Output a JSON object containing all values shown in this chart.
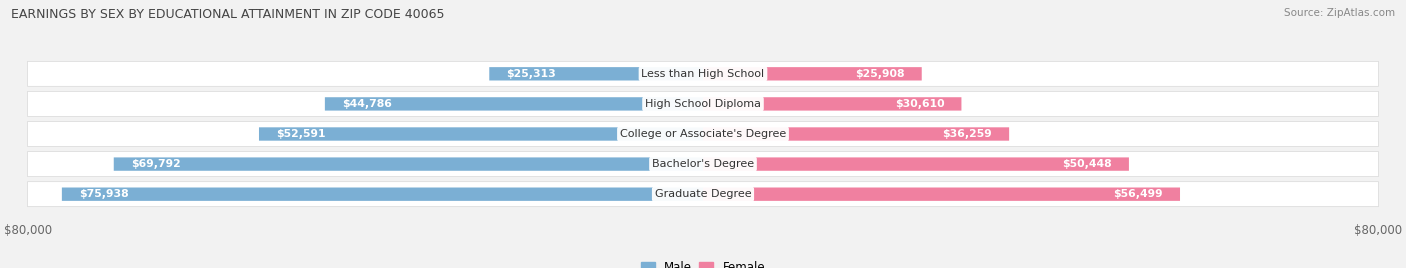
{
  "title": "EARNINGS BY SEX BY EDUCATIONAL ATTAINMENT IN ZIP CODE 40065",
  "source": "Source: ZipAtlas.com",
  "categories": [
    "Less than High School",
    "High School Diploma",
    "College or Associate's Degree",
    "Bachelor's Degree",
    "Graduate Degree"
  ],
  "male_values": [
    25313,
    44786,
    52591,
    69792,
    75938
  ],
  "female_values": [
    25908,
    30610,
    36259,
    50448,
    56499
  ],
  "male_color": "#7bafd4",
  "female_color": "#f080a0",
  "max_value": 80000,
  "background_color": "#f2f2f2",
  "row_bg_color": "#ffffff",
  "row_separator_color": "#d8d8d8",
  "inside_label_color": "#ffffff",
  "outside_label_color": "#555555",
  "title_color": "#444444",
  "source_color": "#888888",
  "axis_label_color": "#666666",
  "inside_threshold": 18000
}
